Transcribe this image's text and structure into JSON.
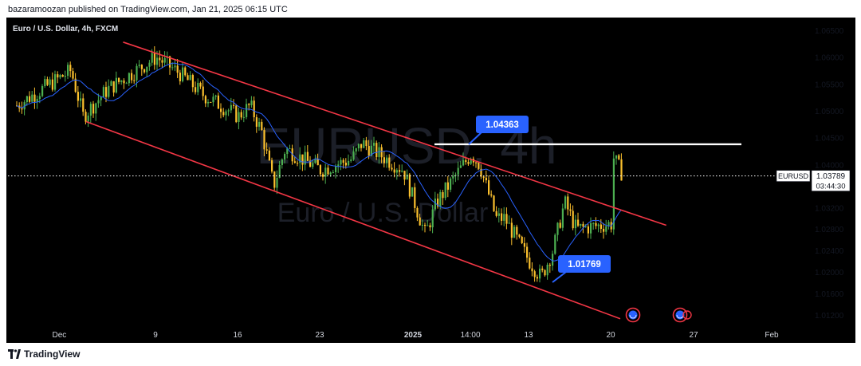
{
  "header": {
    "publisher_line": "bazaramoozan published on TradingView.com, Jan 21, 2025 06:15 UTC"
  },
  "symbol": {
    "title": "Euro / U.S. Dollar, 4h, FXCM",
    "watermark_ticker": "EURUSD, 4h",
    "watermark_name": "Euro / U.S. Dollar"
  },
  "footer": {
    "brand": "TradingView",
    "logo_icon": "tradingview-logo-icon"
  },
  "colors": {
    "background": "#000000",
    "bull": "#4caf50",
    "bear": "#fbc02d",
    "channel": "#f23645",
    "moving_average": "#2962ff",
    "resistance": "#ffffff",
    "callout": "#2962ff"
  },
  "chart_data": {
    "type": "candlestick",
    "title": "Euro / U.S. Dollar, 4h, FXCM",
    "x_ticks": [
      "Dec",
      "9",
      "16",
      "23",
      "2025",
      "14:00",
      "13",
      "20",
      "27",
      "Feb"
    ],
    "y_ticks": [
      "1.06500",
      "1.06000",
      "1.05500",
      "1.05000",
      "1.04500",
      "1.04000",
      "1.03200",
      "1.02800",
      "1.02400",
      "1.02000",
      "1.01600",
      "1.01200"
    ],
    "ylim": [
      1.01,
      1.068
    ],
    "last_price": {
      "symbol": "EURUSD",
      "price": "1.03789",
      "countdown": "03:44:30"
    },
    "annotations": [
      {
        "label": "1.04363",
        "kind": "resistance-high"
      },
      {
        "label": "1.01769",
        "kind": "swing-low"
      }
    ],
    "resistance_level": 1.04363,
    "channel_upper": [
      [
        "Dec 7",
        1.0628
      ],
      [
        "Jan 22",
        1.029
      ]
    ],
    "channel_lower": [
      [
        "Dec 2",
        1.048
      ],
      [
        "Jan 20",
        1.011
      ]
    ],
    "moving_average_anchor_prices": [
      1.05,
      1.0575,
      1.056,
      1.044,
      1.04,
      1.039,
      1.035,
      1.031,
      1.027,
      1.028,
      1.029,
      1.033
    ],
    "price_path": [
      [
        1.051,
        "Nov 27"
      ],
      [
        1.0575,
        "Dec 2"
      ],
      [
        1.049,
        "Dec 3"
      ],
      [
        1.054,
        "Dec 5"
      ],
      [
        1.06,
        "Dec 9"
      ],
      [
        1.057,
        "Dec 11"
      ],
      [
        1.053,
        "Dec 13"
      ],
      [
        1.049,
        "Dec 16"
      ],
      [
        1.051,
        "Dec 17"
      ],
      [
        1.046,
        "Dec 18"
      ],
      [
        1.036,
        "Dec 19"
      ],
      [
        1.043,
        "Dec 20"
      ],
      [
        1.039,
        "Dec 23"
      ],
      [
        1.041,
        "Dec 26"
      ],
      [
        1.044,
        "Dec 27"
      ],
      [
        1.039,
        "Dec 31"
      ],
      [
        1.027,
        "Jan 2"
      ],
      [
        1.033,
        "Jan 3"
      ],
      [
        1.042,
        "Jan 6"
      ],
      [
        1.04,
        "Jan 7"
      ],
      [
        1.03,
        "Jan 9"
      ],
      [
        1.03,
        "Jan 10"
      ],
      [
        1.022,
        "Jan 13"
      ],
      [
        1.019,
        "Jan 14"
      ],
      [
        1.024,
        "Jan 15"
      ],
      [
        1.033,
        "Jan 16"
      ],
      [
        1.028,
        "Jan 17"
      ],
      [
        1.029,
        "Jan 20"
      ],
      [
        1.042,
        "Jan 20"
      ],
      [
        1.0379,
        "Jan 21"
      ]
    ]
  },
  "icons": {
    "event_markers": [
      "economic-event-icon",
      "economic-event-icon"
    ]
  }
}
